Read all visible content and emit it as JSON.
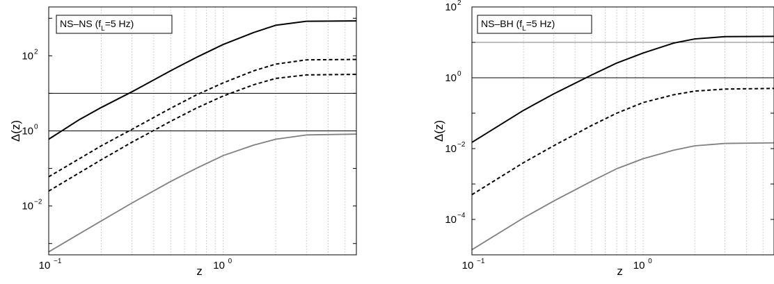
{
  "chart_data": [
    {
      "type": "line",
      "legend_label": {
        "pre": "NS–NS (f",
        "sub": "L",
        "post": "=5 Hz)"
      },
      "xlabel": "z",
      "ylabel": "Δ(z)",
      "x_scale": "log",
      "y_scale": "log",
      "xlim": [
        0.1,
        5.8
      ],
      "ylim": [
        0.0005,
        2000
      ],
      "x_ticks": [
        {
          "value": 0.1,
          "base": "10",
          "exp": "−1"
        },
        {
          "value": 1,
          "base": "10",
          "exp": "0"
        }
      ],
      "y_ticks": [
        {
          "value": 0.01,
          "base": "10",
          "exp": "−2"
        },
        {
          "value": 1,
          "base": "10",
          "exp": "0"
        },
        {
          "value": 100,
          "base": "10",
          "exp": "2"
        }
      ],
      "grid": "x-minor-dotted",
      "hlines": [
        {
          "y": 10,
          "color": "#000000"
        },
        {
          "y": 1,
          "color": "#000000"
        }
      ],
      "series": [
        {
          "style": "solid",
          "color": "#000000",
          "x": [
            0.1,
            0.15,
            0.2,
            0.3,
            0.5,
            0.7,
            1.0,
            1.5,
            2.0,
            3.0,
            5.8
          ],
          "y": [
            0.6,
            2.0,
            4.2,
            11,
            40,
            90,
            200,
            420,
            650,
            830,
            850
          ]
        },
        {
          "style": "dashed",
          "color": "#000000",
          "x": [
            0.1,
            0.2,
            0.3,
            0.5,
            0.7,
            1.0,
            1.5,
            2.0,
            3.0,
            5.8
          ],
          "y": [
            0.06,
            0.4,
            1.1,
            4.0,
            9,
            19,
            40,
            60,
            78,
            80
          ]
        },
        {
          "style": "dashed",
          "color": "#000000",
          "x": [
            0.1,
            0.2,
            0.3,
            0.5,
            0.7,
            1.0,
            1.5,
            2.0,
            3.0,
            5.8
          ],
          "y": [
            0.025,
            0.17,
            0.5,
            1.8,
            4,
            8.5,
            17,
            25,
            31,
            32
          ]
        },
        {
          "style": "solid",
          "color": "#808080",
          "x": [
            0.1,
            0.2,
            0.3,
            0.5,
            0.7,
            1.0,
            1.5,
            2.0,
            3.0,
            5.8
          ],
          "y": [
            0.0006,
            0.004,
            0.012,
            0.045,
            0.1,
            0.22,
            0.42,
            0.6,
            0.78,
            0.82
          ]
        }
      ]
    },
    {
      "type": "line",
      "legend_label": {
        "pre": "NS–BH (f",
        "sub": "L",
        "post": "=5 Hz)"
      },
      "xlabel": "z",
      "ylabel": "Δ(z)",
      "x_scale": "log",
      "y_scale": "log",
      "xlim": [
        0.1,
        5.8
      ],
      "ylim": [
        1e-05,
        100
      ],
      "x_ticks": [
        {
          "value": 0.1,
          "base": "10",
          "exp": "−1"
        },
        {
          "value": 1,
          "base": "10",
          "exp": "0"
        }
      ],
      "y_ticks": [
        {
          "value": 0.0001,
          "base": "10",
          "exp": "−4"
        },
        {
          "value": 0.01,
          "base": "10",
          "exp": "−2"
        },
        {
          "value": 1,
          "base": "10",
          "exp": "0"
        },
        {
          "value": 100,
          "base": "10",
          "exp": "2"
        }
      ],
      "grid": "x-minor-dotted",
      "hlines": [
        {
          "y": 10,
          "color": "#808080"
        },
        {
          "y": 1,
          "color": "#000000"
        }
      ],
      "series": [
        {
          "style": "solid",
          "color": "#000000",
          "x": [
            0.1,
            0.2,
            0.3,
            0.5,
            0.7,
            1.0,
            1.5,
            2.0,
            3.0,
            5.8
          ],
          "y": [
            0.015,
            0.12,
            0.35,
            1.2,
            2.6,
            5.0,
            9.5,
            12.5,
            14.5,
            14.8
          ]
        },
        {
          "style": "dashed",
          "color": "#000000",
          "x": [
            0.1,
            0.2,
            0.3,
            0.5,
            0.7,
            1.0,
            1.5,
            2.0,
            3.0,
            5.8
          ],
          "y": [
            0.0005,
            0.004,
            0.012,
            0.045,
            0.1,
            0.2,
            0.33,
            0.42,
            0.48,
            0.5
          ]
        },
        {
          "style": "solid",
          "color": "#808080",
          "x": [
            0.1,
            0.2,
            0.3,
            0.5,
            0.7,
            1.0,
            1.5,
            2.0,
            3.0,
            5.8
          ],
          "y": [
            1.4e-05,
            0.00011,
            0.00033,
            0.0012,
            0.0027,
            0.0052,
            0.009,
            0.012,
            0.014,
            0.0145
          ]
        }
      ]
    }
  ]
}
